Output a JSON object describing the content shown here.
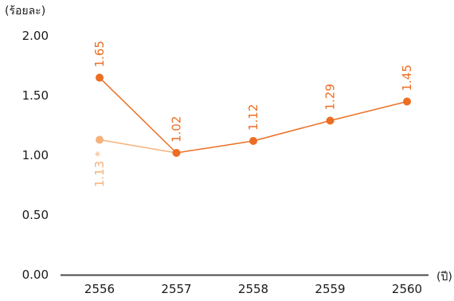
{
  "chart_data": {
    "type": "line",
    "y_unit_label": "(ร้อยละ)",
    "x_unit_label": "(ปี)",
    "categories": [
      "2556",
      "2557",
      "2558",
      "2559",
      "2560"
    ],
    "y_ticks": [
      "0.00",
      "0.50",
      "1.00",
      "1.50",
      "2.00"
    ],
    "ylim": [
      0,
      2.0
    ],
    "grid": false,
    "series": [
      {
        "values": [
          1.65,
          1.02,
          1.12,
          1.29,
          1.45
        ],
        "labels": [
          "1.65",
          "1.02",
          "1.12",
          "1.29",
          "1.45"
        ],
        "color": "#ec6e23"
      },
      {
        "x": [
          "2556",
          "2557"
        ],
        "values": [
          1.13,
          1.02
        ],
        "labels": [
          "1.13 *",
          ""
        ],
        "color": "#f5b27c"
      }
    ]
  }
}
